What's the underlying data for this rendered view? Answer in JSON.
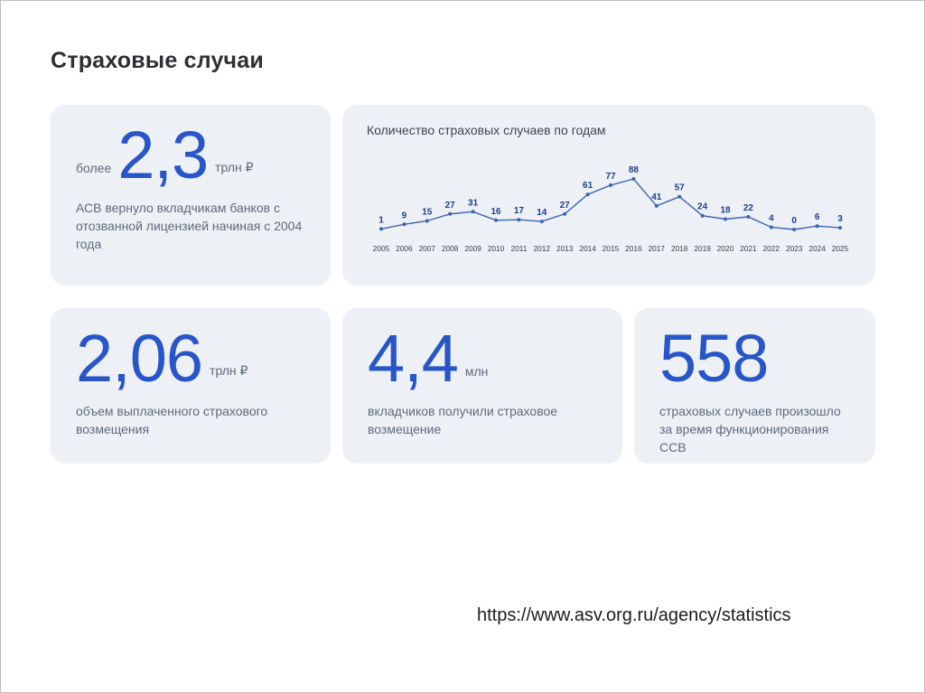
{
  "page": {
    "title": "Страховые случаи",
    "source_link": "https://www.asv.org.ru/agency/statistics"
  },
  "colors": {
    "accent": "#2856c9",
    "chart_line": "#3a64b4",
    "chart_value_label": "#1e3f8f",
    "card_background": "#edf0f5"
  },
  "cards": {
    "returned": {
      "prefix": "более",
      "value": "2,3",
      "unit": "трлн ₽",
      "description": "АСВ вернуло вкладчикам банков с отозванной лицензией начиная с 2004 года"
    },
    "paid": {
      "value": "2,06",
      "unit": "трлн ₽",
      "description": "объем выплаченного страхового возмещения"
    },
    "depositors": {
      "value": "4,4",
      "unit": "млн",
      "description": "вкладчиков получили страховое возмещение"
    },
    "cases": {
      "value": "558",
      "description": "страховых случаев произошло за время функционирования ССВ"
    }
  },
  "chart_data": {
    "type": "line",
    "title": "Количество страховых случаев по годам",
    "categories": [
      "2005",
      "2006",
      "2007",
      "2008",
      "2009",
      "2010",
      "2011",
      "2012",
      "2013",
      "2014",
      "2015",
      "2016",
      "2017",
      "2018",
      "2019",
      "2020",
      "2021",
      "2022",
      "2023",
      "2024",
      "2025"
    ],
    "values": [
      1,
      9,
      15,
      27,
      31,
      16,
      17,
      14,
      27,
      61,
      77,
      88,
      41,
      57,
      24,
      18,
      22,
      4,
      0,
      6,
      3
    ],
    "xlabel": "",
    "ylabel": "",
    "ylim": [
      0,
      88
    ],
    "grid": false,
    "legend": "none",
    "data_labels": true
  }
}
